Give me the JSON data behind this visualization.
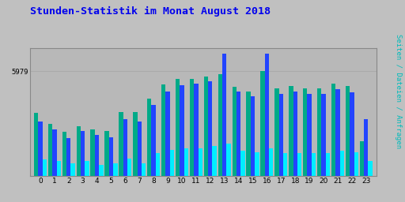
{
  "title": "Stunden-Statistik im Monat August 2018",
  "ylabel": "Seiten / Dateien / Anfragen",
  "xlabel_ticks": [
    "0",
    "1",
    "2",
    "3",
    "4",
    "5",
    "6",
    "7",
    "8",
    "9",
    "10",
    "11",
    "12",
    "13",
    "14",
    "15",
    "16",
    "17",
    "18",
    "19",
    "20",
    "21",
    "22",
    "23"
  ],
  "ytick_label": "5979",
  "background_color": "#c0c0c0",
  "plot_bg_color": "#b8b8b8",
  "title_color": "#0000ee",
  "ylabel_color": "#00bbbb",
  "ytick_color": "#000000",
  "xtick_color": "#000000",
  "grid_color": "#aaaaaa",
  "bar_colors": [
    "#00aa88",
    "#2244ff",
    "#00eeff"
  ],
  "series_seiten": [
    370,
    305,
    258,
    290,
    275,
    265,
    375,
    375,
    455,
    540,
    570,
    570,
    585,
    600,
    525,
    498,
    615,
    513,
    527,
    513,
    513,
    541,
    527,
    204
  ],
  "series_dateien": [
    320,
    275,
    220,
    262,
    242,
    228,
    335,
    320,
    417,
    497,
    534,
    541,
    556,
    718,
    498,
    468,
    718,
    483,
    498,
    483,
    483,
    512,
    490,
    335
  ],
  "series_anfragen": [
    95,
    87,
    73,
    87,
    66,
    73,
    102,
    73,
    132,
    154,
    161,
    161,
    175,
    190,
    146,
    139,
    161,
    132,
    132,
    132,
    132,
    146,
    139,
    87
  ],
  "ymax": 750,
  "figsize": [
    5.12,
    2.56
  ],
  "dpi": 100
}
